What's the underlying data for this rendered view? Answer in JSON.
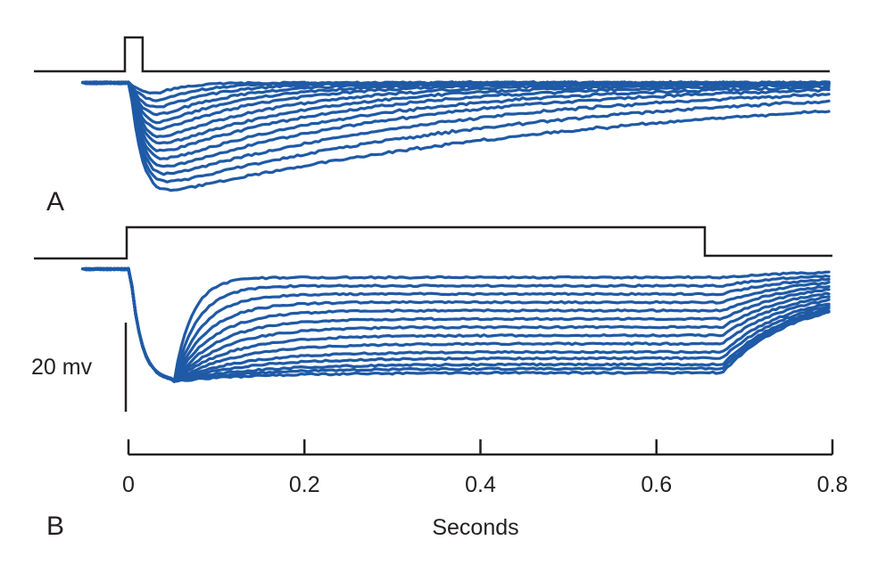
{
  "chart_data": {
    "type": "line",
    "panels": [
      {
        "label": "A",
        "stimulus": "brief pulse",
        "stimulus_on_s": 0.0,
        "stimulus_off_s": 0.01,
        "trace_count": 14,
        "peak_time_s": 0.045,
        "peak_depth_mv": [
          3,
          5,
          7,
          9,
          11,
          13,
          15,
          17,
          19,
          21,
          23,
          25,
          27,
          29
        ],
        "recovery_tau_s": [
          0.03,
          0.05,
          0.07,
          0.09,
          0.11,
          0.13,
          0.16,
          0.19,
          0.22,
          0.26,
          0.3,
          0.36,
          0.44,
          0.55
        ]
      },
      {
        "label": "B",
        "stimulus": "sustained step",
        "stimulus_on_s": 0.0,
        "stimulus_off_s": 0.655,
        "trace_count": 14,
        "peak_time_s": 0.05,
        "peak_depth_mv": 27,
        "plateau_depth_mv": [
          2,
          4,
          6,
          8,
          10,
          12,
          14,
          16,
          18,
          20,
          21.5,
          23,
          24,
          25
        ]
      }
    ],
    "x": {
      "label": "Seconds",
      "range": [
        0,
        0.8
      ],
      "ticks": [
        "0",
        "0.2",
        "0.4",
        "0.6",
        "0.8"
      ]
    },
    "scale_bar": {
      "label": "20 mv",
      "value_mv": 20
    },
    "trace_color": "#1f5aa6",
    "stim_color": "#231f20"
  }
}
